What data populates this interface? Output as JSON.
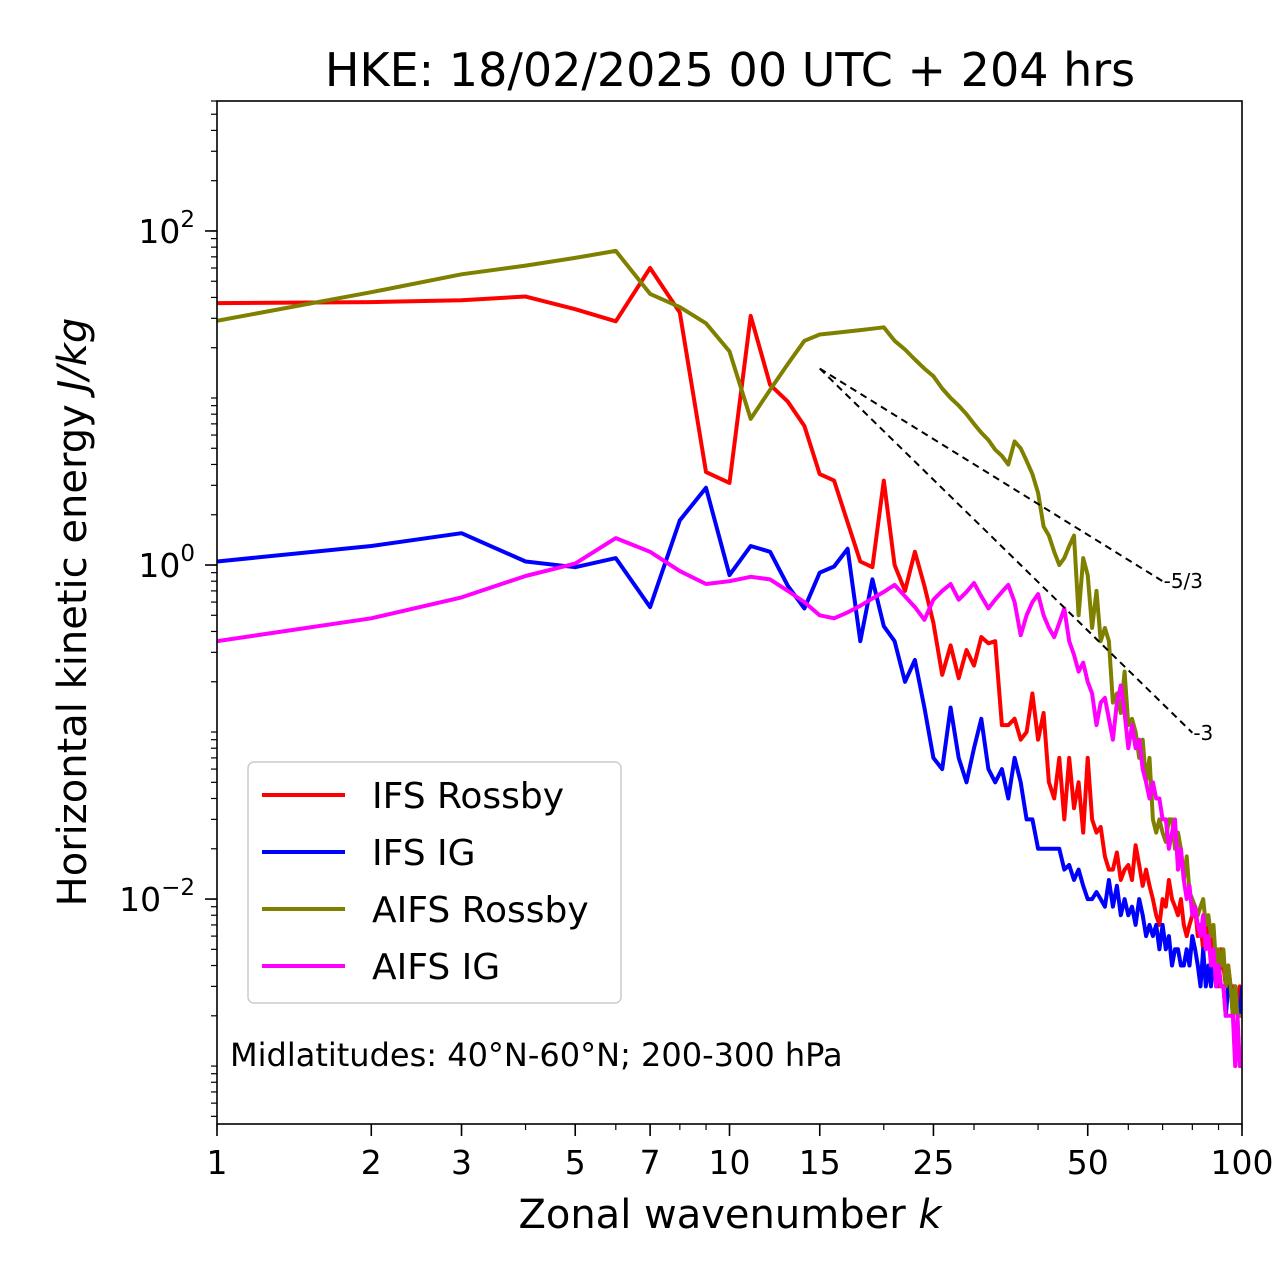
{
  "chart_data": {
    "type": "line",
    "title": "HKE: 18/02/2025 00 UTC + 204 hrs",
    "xlabel_main": "Zonal wavenumber ",
    "xlabel_var": "k",
    "ylabel_main": "Horizontal kinetic energy ",
    "ylabel_var": "J/kg",
    "xscale": "log",
    "yscale": "log",
    "xlim": [
      1,
      100
    ],
    "ylim": [
      0.00045,
      600
    ],
    "x_ticks": [
      1,
      2,
      3,
      5,
      7,
      10,
      15,
      25,
      50,
      100
    ],
    "x_tick_labels": [
      "1",
      "2",
      "3",
      "5",
      "7",
      "10",
      "15",
      "25",
      "50",
      "100"
    ],
    "y_ticks": [
      {
        "value": 100,
        "base": "10",
        "exp": "2"
      },
      {
        "value": 1,
        "base": "10",
        "exp": "0"
      },
      {
        "value": 0.01,
        "base": "10",
        "exp": "−2"
      }
    ],
    "grid": false,
    "legend_position": "lower-left",
    "annotation": "Midlatitudes: 40°N-60°N; 200-300 hPa",
    "reference_lines": [
      {
        "label": "-5/3",
        "slope": -1.6667,
        "x": [
          15,
          70
        ],
        "y": [
          15,
          0.8
        ]
      },
      {
        "label": "-3",
        "slope": -3,
        "x": [
          15,
          80
        ],
        "y": [
          15,
          0.099
        ]
      }
    ],
    "series": [
      {
        "name": "IFS Rossby",
        "color": "#ff0000",
        "stride": 1,
        "values": [
          37,
          37.5,
          38.5,
          40.5,
          34,
          28.8,
          60,
          32.5,
          3.6,
          3.1,
          31,
          12,
          9.5,
          6.8,
          3.5,
          3.2,
          1.8,
          1.05,
          0.97,
          3.2,
          1,
          0.7,
          1.2,
          0.75,
          0.45,
          0.22,
          0.33,
          0.21,
          0.31,
          0.25,
          0.37,
          0.34,
          0.35,
          0.11,
          0.11,
          0.12,
          0.09,
          0.1,
          0.17,
          0.09,
          0.13,
          0.05,
          0.04,
          0.07,
          0.03,
          0.07,
          0.035,
          0.05,
          0.025,
          0.07,
          0.03,
          0.025,
          0.027,
          0.018,
          0.015,
          0.015,
          0.019,
          0.013,
          0.015,
          0.016,
          0.013,
          0.021,
          0.016,
          0.012,
          0.015,
          0.012,
          0.01,
          0.008,
          0.007,
          0.01,
          0.009,
          0.013,
          0.01,
          0.009,
          0.008,
          0.01,
          0.007,
          0.006,
          0.007,
          0.008,
          0.009,
          0.006,
          0.007,
          0.005,
          0.007,
          0.006,
          0.005,
          0.006,
          0.004,
          0.003,
          0.005,
          0.004,
          0.003,
          0.004,
          0.003,
          0.003,
          0.003,
          0.002,
          0.003,
          0.002
        ]
      },
      {
        "name": "IFS IG",
        "color": "#0000ff",
        "stride": 1,
        "values": [
          1.05,
          1.3,
          1.55,
          1.05,
          0.97,
          1.1,
          0.56,
          1.85,
          2.9,
          0.87,
          1.3,
          1.2,
          0.75,
          0.55,
          0.9,
          0.98,
          1.25,
          0.35,
          0.82,
          0.43,
          0.35,
          0.2,
          0.27,
          0.14,
          0.07,
          0.06,
          0.14,
          0.07,
          0.05,
          0.08,
          0.12,
          0.06,
          0.05,
          0.06,
          0.04,
          0.07,
          0.05,
          0.03,
          0.03,
          0.02,
          0.02,
          0.02,
          0.02,
          0.02,
          0.015,
          0.016,
          0.013,
          0.015,
          0.012,
          0.01,
          0.01,
          0.011,
          0.01,
          0.009,
          0.013,
          0.009,
          0.012,
          0.008,
          0.01,
          0.008,
          0.009,
          0.007,
          0.01,
          0.008,
          0.006,
          0.007,
          0.006,
          0.007,
          0.005,
          0.007,
          0.005,
          0.006,
          0.004,
          0.005,
          0.005,
          0.004,
          0.004,
          0.005,
          0.004,
          0.006,
          0.005,
          0.004,
          0.003,
          0.005,
          0.003,
          0.004,
          0.003,
          0.005,
          0.003,
          0.004,
          0.003,
          0.003,
          0.002,
          0.003,
          0.003,
          0.002,
          0.003,
          0.002,
          0.002,
          0.003
        ]
      },
      {
        "name": "AIFS Rossby",
        "color": "#808000",
        "stride": 1,
        "values": [
          29,
          43,
          55,
          62,
          69,
          76,
          42,
          35,
          28,
          19,
          7.5,
          11.2,
          16,
          22,
          24,
          24.5,
          25,
          25.5,
          26,
          26.5,
          22,
          19.5,
          17,
          15,
          13.5,
          11.4,
          10,
          9,
          8,
          7,
          6.2,
          5.6,
          4.9,
          4.5,
          4,
          5.5,
          5,
          4.2,
          3.5,
          2.7,
          1.7,
          1.5,
          1.2,
          1,
          1.1,
          1.3,
          1.5,
          0.5,
          1.1,
          0.87,
          0.42,
          0.7,
          0.35,
          0.42,
          0.35,
          0.15,
          0.17,
          0.13,
          0.23,
          0.11,
          0.12,
          0.1,
          0.07,
          0.09,
          0.05,
          0.07,
          0.03,
          0.025,
          0.03,
          0.025,
          0.022,
          0.03,
          0.03,
          0.02,
          0.025,
          0.02,
          0.013,
          0.018,
          0.011,
          0.01,
          0.009,
          0.008,
          0.009,
          0.01,
          0.007,
          0.008,
          0.006,
          0.007,
          0.004,
          0.005,
          0.004,
          0.005,
          0.003,
          0.004,
          0.003,
          0.002,
          0.003,
          0.002,
          0.002,
          0.002
        ]
      },
      {
        "name": "AIFS IG",
        "color": "#ff00ff",
        "stride": 1,
        "values": [
          0.35,
          0.48,
          0.64,
          0.86,
          1.02,
          1.45,
          1.2,
          0.92,
          0.77,
          0.8,
          0.85,
          0.82,
          0.7,
          0.6,
          0.5,
          0.48,
          0.52,
          0.57,
          0.63,
          0.69,
          0.76,
          0.65,
          0.56,
          0.47,
          0.62,
          0.7,
          0.77,
          0.62,
          0.69,
          0.78,
          0.65,
          0.55,
          0.62,
          0.69,
          0.76,
          0.6,
          0.38,
          0.5,
          0.6,
          0.67,
          0.5,
          0.42,
          0.37,
          0.45,
          0.55,
          0.35,
          0.29,
          0.23,
          0.26,
          0.2,
          0.17,
          0.11,
          0.15,
          0.16,
          0.12,
          0.09,
          0.15,
          0.19,
          0.13,
          0.08,
          0.11,
          0.08,
          0.09,
          0.06,
          0.05,
          0.04,
          0.05,
          0.04,
          0.04,
          0.03,
          0.03,
          0.02,
          0.025,
          0.03,
          0.015,
          0.02,
          0.013,
          0.01,
          0.012,
          0.008,
          0.009,
          0.007,
          0.006,
          0.008,
          0.005,
          0.006,
          0.004,
          0.005,
          0.003,
          0.004,
          0.003,
          0.003,
          0.002,
          0.002,
          0.002,
          0.002,
          0.001,
          0.002,
          0.001,
          0.001
        ]
      }
    ]
  }
}
